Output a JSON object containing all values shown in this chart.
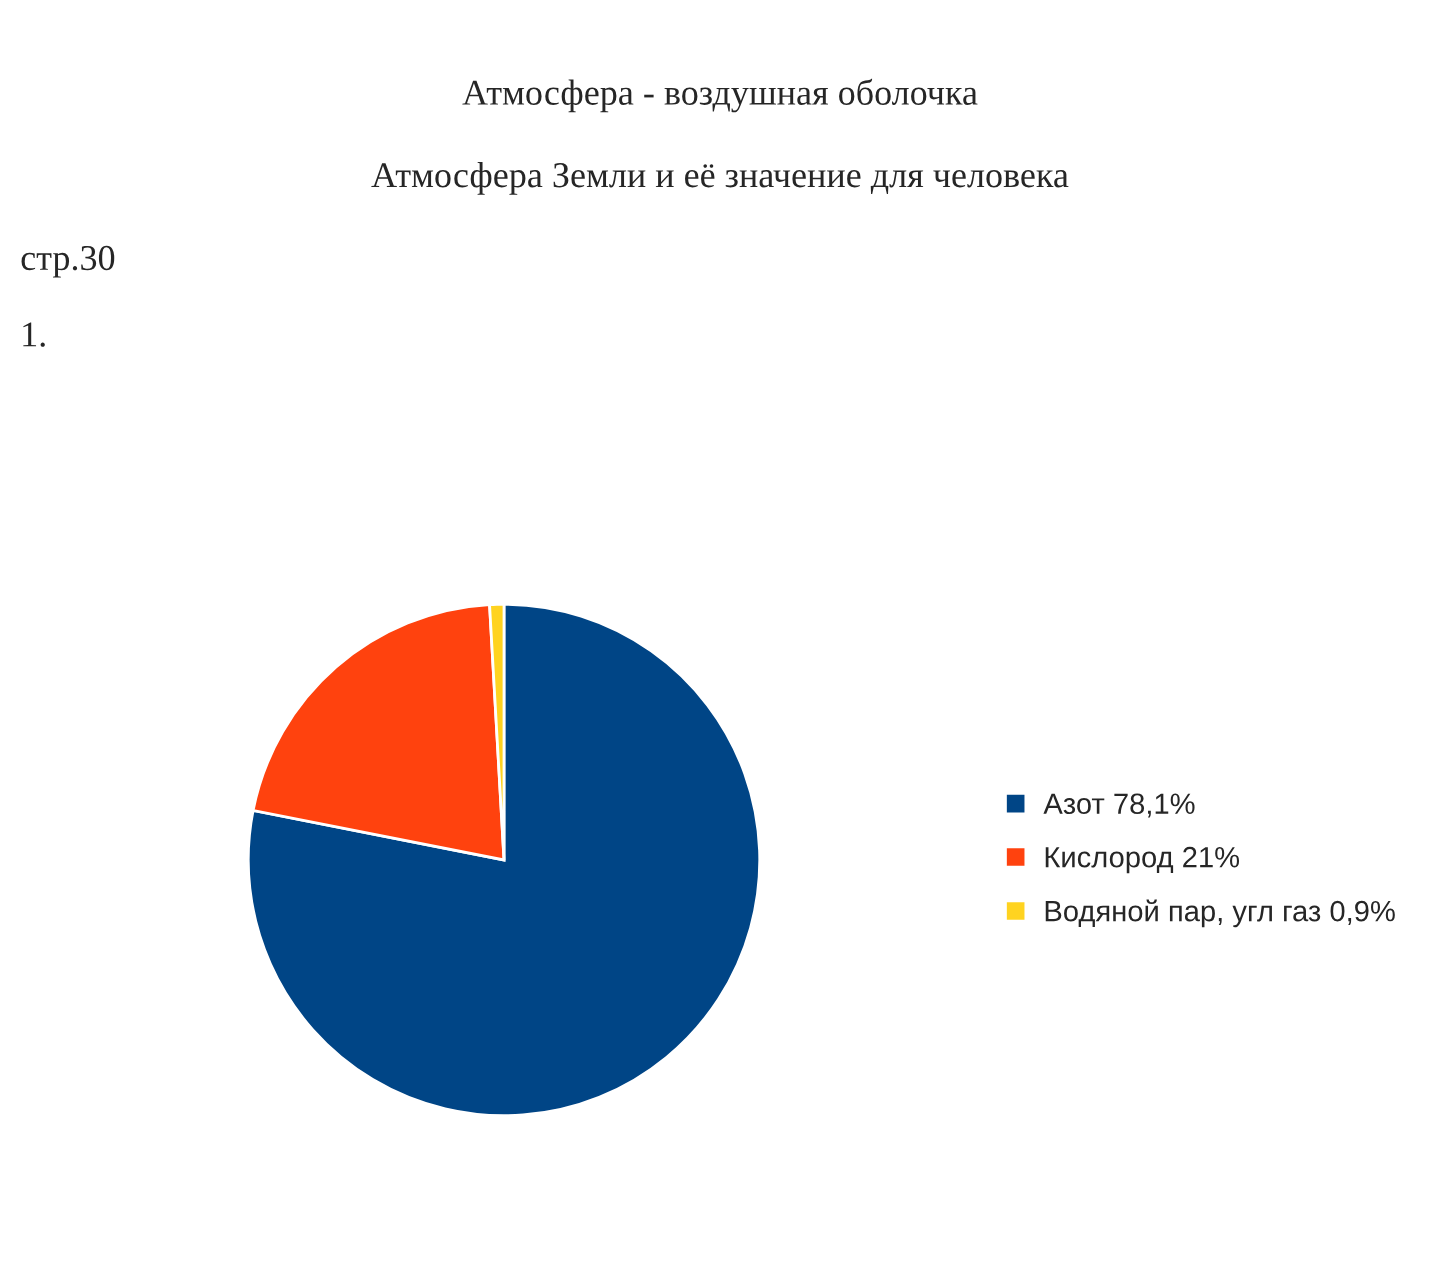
{
  "chart_data": {
    "type": "pie",
    "title": "Атмосфера - воздушная оболочка",
    "subtitle": "Атмосфера Земли и её значение для человека",
    "annotations": [
      "стр.30",
      "1."
    ],
    "categories": [
      "Азот 78,1%",
      "Кислород 21%",
      "Водяной пар, угл газ 0,9%"
    ],
    "values": [
      78.1,
      21,
      0.9
    ],
    "colors": [
      "#004586",
      "#ff420e",
      "#ffd320"
    ],
    "legend": "right"
  }
}
